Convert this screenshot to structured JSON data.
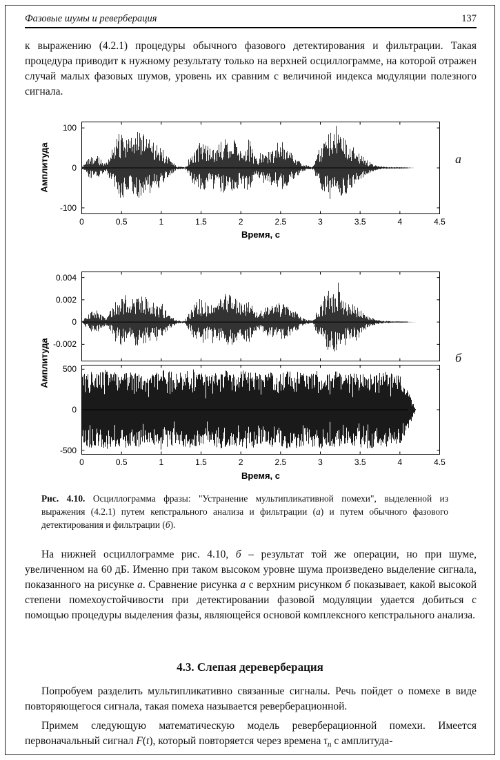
{
  "header": {
    "title": "Фазовые шумы и реверберация",
    "page_number": "137"
  },
  "paragraphs": {
    "p1": "к выражению (4.2.1) процедуры обычного фазового детектирования и фильтрации. Такая процедура приводит к нужному результату только на верхней осциллограмме, на которой отражен случай малых фазовых шумов, уровень их сравним с величиной индекса модуляции полезного сигнала.",
    "p2": [
      {
        "t": "На нижней осциллограмме рис. 4.10, "
      },
      {
        "t": "б",
        "i": 1
      },
      {
        "t": " – результат той же операции, но при шуме, увеличенном на 60 дБ. Именно при таком высоком уровне шума произведено выделение сигнала, показанного на рисунке "
      },
      {
        "t": "а",
        "i": 1
      },
      {
        "t": ". Сравнение рисунка "
      },
      {
        "t": "а",
        "i": 1
      },
      {
        "t": " с верхним рисунком "
      },
      {
        "t": "б",
        "i": 1
      },
      {
        "t": " показывает, какой высокой степени помехоустойчивости при детектировании фазовой модуляции удается добиться с помощью процедуры выделения фазы, являющейся основой комплексного кепстрального анализа."
      }
    ],
    "p3": "Попробуем разделить мультипликативно связанные сигналы. Речь пойдет о помехе в виде повторяющегося сигнала, такая помеха называется реверберационной.",
    "p4": [
      {
        "t": "Примем следующую математическую модель реверберационной помехи. Имеется первоначальный сигнал "
      },
      {
        "t": "F",
        "i": 1
      },
      {
        "t": "("
      },
      {
        "t": "t",
        "i": 1
      },
      {
        "t": ")"
      },
      {
        "t": ", который повторяется через времена "
      },
      {
        "t": "τ",
        "i": 1
      },
      {
        "t": "n",
        "i": 1,
        "sub": 1
      },
      {
        "t": " с амплитуда-"
      }
    ]
  },
  "section": {
    "heading": "4.3. Слепая дереверберация"
  },
  "figure": {
    "label_a": "а",
    "label_b": "б",
    "caption": [
      {
        "t": "Рис. 4.10. ",
        "b": 1
      },
      {
        "t": "Осциллограмма фразы: \"Устранение мультипликативной помехи\", выделенной из выражения (4.2.1) путем кепстрального анализа и фильтрации ("
      },
      {
        "t": "а",
        "i": 1
      },
      {
        "t": ") и путем обычного фазового детектирования и фильтрации ("
      },
      {
        "t": "б",
        "i": 1
      },
      {
        "t": ")."
      }
    ]
  },
  "chart_data": [
    {
      "id": "fig_a",
      "type": "line",
      "subtype": "speech-waveform-oscillogram",
      "title": "",
      "xlabel": "Время, с",
      "ylabel": "Амплитуда",
      "xlim": [
        0,
        4.5
      ],
      "ylim": [
        -115,
        115
      ],
      "xticks": [
        {
          "v": 0,
          "label": "0"
        },
        {
          "v": 0.5,
          "label": "0.5"
        },
        {
          "v": 1,
          "label": "1"
        },
        {
          "v": 1.5,
          "label": "1.5"
        },
        {
          "v": 2,
          "label": "2"
        },
        {
          "v": 2.5,
          "label": "2.5"
        },
        {
          "v": 3,
          "label": "3"
        },
        {
          "v": 3.5,
          "label": "3.5"
        },
        {
          "v": 4,
          "label": "4"
        },
        {
          "v": 4.5,
          "label": "4.5"
        }
      ],
      "yticks": [
        {
          "v": 100,
          "label": "100"
        },
        {
          "v": 0,
          "label": "0"
        },
        {
          "v": -100,
          "label": "-100"
        }
      ],
      "show_xtick_labels": true,
      "waveform_style": "speech",
      "signal_peak": 100,
      "envelope_dt": 0.1,
      "envelope": [
        0.02,
        0.28,
        0.3,
        0.08,
        0.55,
        1,
        0.75,
        0.9,
        0.85,
        0.65,
        0.55,
        0.25,
        0.04,
        0.03,
        0.45,
        0.7,
        0.5,
        0.55,
        0.8,
        0.75,
        0.5,
        0.65,
        0.25,
        0.4,
        0.45,
        0.55,
        0.5,
        0.25,
        0.08,
        0.03,
        0.55,
        0.9,
        0.95,
        0.75,
        0.55,
        0.35,
        0.18,
        0.06,
        0.03,
        0.02,
        0.02,
        0.01,
        0,
        0,
        0,
        0
      ],
      "baseline_end": 4.1
    },
    {
      "id": "fig_b_top",
      "type": "line",
      "subtype": "speech-waveform-oscillogram",
      "title": "",
      "xlabel": "",
      "ylabel": "",
      "xlim": [
        0,
        4.5
      ],
      "ylim": [
        -0.0035,
        0.0045
      ],
      "xticks": [
        {
          "v": 0,
          "label": "0"
        },
        {
          "v": 0.5,
          "label": "0.5"
        },
        {
          "v": 1,
          "label": "1"
        },
        {
          "v": 1.5,
          "label": "1.5"
        },
        {
          "v": 2,
          "label": "2"
        },
        {
          "v": 2.5,
          "label": "2.5"
        },
        {
          "v": 3,
          "label": "3"
        },
        {
          "v": 3.5,
          "label": "3.5"
        },
        {
          "v": 4,
          "label": "4"
        },
        {
          "v": 4.5,
          "label": "4.5"
        }
      ],
      "yticks": [
        {
          "v": 0.004,
          "label": "0.004"
        },
        {
          "v": 0.002,
          "label": "0.002"
        },
        {
          "v": 0,
          "label": "0"
        },
        {
          "v": -0.002,
          "label": "-0.002"
        }
      ],
      "show_xtick_labels": false,
      "waveform_style": "speech",
      "signal_peak": 0.003,
      "envelope_dt": 0.1,
      "envelope": [
        0.02,
        0.3,
        0.35,
        0.1,
        0.5,
        0.85,
        0.7,
        0.8,
        0.75,
        0.6,
        0.5,
        0.25,
        0.05,
        0.04,
        0.5,
        0.75,
        0.55,
        0.6,
        0.85,
        0.8,
        0.55,
        0.7,
        0.3,
        0.45,
        0.5,
        0.6,
        0.5,
        0.3,
        0.1,
        0.04,
        0.6,
        0.95,
        1,
        0.8,
        0.6,
        0.4,
        0.2,
        0.08,
        0.04,
        0.02,
        0.02,
        0.01,
        0,
        0,
        0,
        0
      ],
      "baseline_end": 4.1
    },
    {
      "id": "fig_b_bottom",
      "type": "line",
      "subtype": "noisy-waveform-oscillogram",
      "title": "",
      "xlabel": "Время, с",
      "ylabel": "Амплитуда",
      "xlim": [
        0,
        4.5
      ],
      "ylim": [
        -550,
        550
      ],
      "xticks": [
        {
          "v": 0,
          "label": "0"
        },
        {
          "v": 0.5,
          "label": "0.5"
        },
        {
          "v": 1,
          "label": "1"
        },
        {
          "v": 1.5,
          "label": "1.5"
        },
        {
          "v": 2,
          "label": "2"
        },
        {
          "v": 2.5,
          "label": "2.5"
        },
        {
          "v": 3,
          "label": "3"
        },
        {
          "v": 3.5,
          "label": "3.5"
        },
        {
          "v": 4,
          "label": "4"
        },
        {
          "v": 4.5,
          "label": "4.5"
        }
      ],
      "yticks": [
        {
          "v": 500,
          "label": "500"
        },
        {
          "v": 0,
          "label": "0"
        },
        {
          "v": -500,
          "label": "-500"
        }
      ],
      "show_xtick_labels": true,
      "waveform_style": "noise",
      "signal_peak": 500,
      "envelope_dt": 0.1,
      "envelope": [
        0.9,
        0.95,
        0.88,
        1,
        0.93,
        0.9,
        1,
        0.94,
        0.86,
        0.9,
        1,
        0.95,
        0.9,
        0.96,
        1,
        0.9,
        0.86,
        0.95,
        1,
        0.9,
        0.95,
        1,
        0.9,
        0.85,
        0.95,
        0.9,
        1,
        0.95,
        0.9,
        0.95,
        1,
        0.9,
        0.95,
        0.85,
        0.9,
        0.95,
        1,
        0.92,
        0.95,
        0.9,
        0.86,
        0.5,
        0,
        0,
        0,
        0
      ],
      "baseline_end": 4.1
    }
  ]
}
